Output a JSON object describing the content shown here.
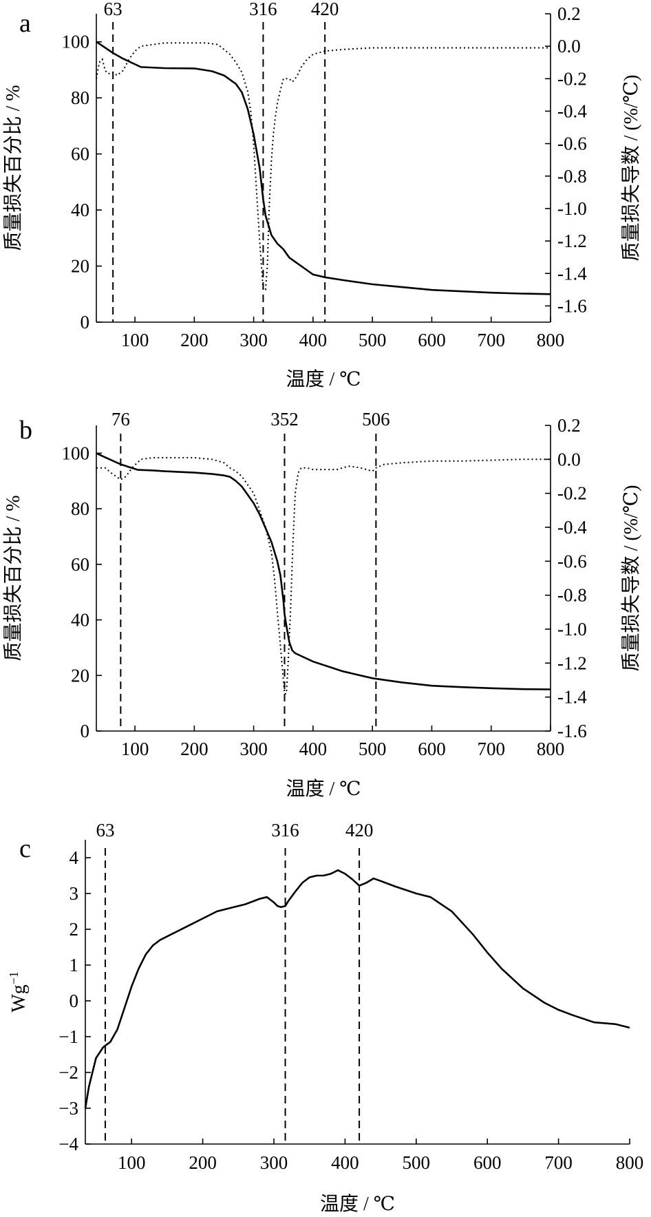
{
  "chart_data": [
    {
      "panel": "a",
      "type": "line",
      "xlabel": "温度 / ℃",
      "ylabel": "质量损失百分比 / %",
      "y2label": "质量损失导数 / (%/℃)",
      "xlim": [
        35,
        800
      ],
      "ylim": [
        0,
        110
      ],
      "y2lim": [
        -1.7,
        0.2
      ],
      "xticks": [
        "100",
        "200",
        "300",
        "400",
        "500",
        "600",
        "700",
        "800"
      ],
      "yticks": [
        "0",
        "20",
        "40",
        "60",
        "80",
        "100"
      ],
      "y2ticks": [
        "0.2",
        "0.0",
        "-0.2",
        "-0.4",
        "-0.6",
        "-0.8",
        "-1.0",
        "-1.2",
        "-1.4",
        "-1.6"
      ],
      "markers": [
        {
          "x": 63,
          "label": "63"
        },
        {
          "x": 316,
          "label": "316"
        },
        {
          "x": 420,
          "label": "420"
        }
      ],
      "series": [
        {
          "axis": "left",
          "style": "solid",
          "x": [
            35,
            63,
            80,
            110,
            150,
            200,
            230,
            250,
            270,
            280,
            290,
            300,
            310,
            316,
            320,
            330,
            340,
            350,
            360,
            380,
            400,
            420,
            450,
            500,
            550,
            600,
            650,
            700,
            750,
            800
          ],
          "y": [
            100,
            96,
            94,
            91,
            90.6,
            90.5,
            89.5,
            88,
            85,
            82,
            76,
            67,
            55,
            44,
            38,
            31,
            28,
            26,
            23,
            20,
            17,
            16,
            15,
            13.5,
            12.5,
            11.5,
            11,
            10.5,
            10.2,
            10
          ]
        },
        {
          "axis": "right",
          "style": "dotted",
          "x": [
            35,
            40,
            45,
            50,
            55,
            63,
            70,
            80,
            90,
            100,
            110,
            130,
            150,
            170,
            200,
            220,
            240,
            260,
            270,
            280,
            290,
            295,
            300,
            305,
            310,
            316,
            320,
            323,
            326,
            330,
            333,
            336,
            340,
            345,
            350,
            355,
            360,
            365,
            370,
            375,
            380,
            390,
            400,
            420,
            450,
            500,
            600,
            700,
            800
          ],
          "y": [
            -0.2,
            -0.1,
            -0.08,
            -0.15,
            -0.17,
            -0.16,
            -0.18,
            -0.15,
            -0.08,
            -0.03,
            0,
            0.01,
            0.02,
            0.02,
            0.02,
            0.02,
            0.01,
            -0.05,
            -0.1,
            -0.16,
            -0.28,
            -0.4,
            -0.6,
            -0.9,
            -1.2,
            -1.5,
            -1.5,
            -1.35,
            -1.0,
            -0.7,
            -0.55,
            -0.45,
            -0.35,
            -0.27,
            -0.2,
            -0.2,
            -0.2,
            -0.22,
            -0.2,
            -0.17,
            -0.13,
            -0.08,
            -0.05,
            -0.03,
            -0.02,
            -0.01,
            -0.01,
            -0.01,
            -0.01
          ]
        }
      ]
    },
    {
      "panel": "b",
      "type": "line",
      "xlabel": "温度 / ℃",
      "ylabel": "质量损失百分比 / %",
      "y2label": "质量损失导数 / (%/℃)",
      "xlim": [
        35,
        800
      ],
      "ylim": [
        0,
        110
      ],
      "y2lim": [
        -1.6,
        0.2
      ],
      "xticks": [
        "100",
        "200",
        "300",
        "400",
        "500",
        "600",
        "700",
        "800"
      ],
      "yticks": [
        "0",
        "20",
        "40",
        "60",
        "80",
        "100"
      ],
      "y2ticks": [
        "0.2",
        "0.0",
        "-0.2",
        "-0.4",
        "-0.6",
        "-0.8",
        "-1.0",
        "-1.2",
        "-1.4",
        "-1.6"
      ],
      "markers": [
        {
          "x": 76,
          "label": "76"
        },
        {
          "x": 352,
          "label": "352"
        },
        {
          "x": 506,
          "label": "506"
        }
      ],
      "series": [
        {
          "axis": "left",
          "style": "solid",
          "x": [
            35,
            50,
            76,
            90,
            105,
            130,
            150,
            200,
            230,
            250,
            260,
            270,
            280,
            290,
            300,
            310,
            320,
            330,
            340,
            345,
            350,
            352,
            355,
            360,
            365,
            370,
            380,
            400,
            450,
            500,
            550,
            600,
            650,
            700,
            750,
            800
          ],
          "y": [
            100,
            98.5,
            96,
            95,
            94,
            93.8,
            93.5,
            93,
            92.5,
            92,
            91.5,
            90,
            88,
            85,
            82,
            78,
            73,
            68,
            61,
            56,
            47,
            42,
            38,
            32,
            29,
            28,
            27,
            25,
            21.5,
            19,
            17.5,
            16.3,
            15.8,
            15.4,
            15.1,
            15
          ]
        },
        {
          "axis": "right",
          "style": "dotted",
          "x": [
            35,
            50,
            60,
            76,
            85,
            95,
            110,
            130,
            150,
            200,
            230,
            250,
            260,
            270,
            280,
            290,
            300,
            310,
            320,
            330,
            335,
            340,
            345,
            350,
            352,
            355,
            358,
            362,
            366,
            370,
            375,
            380,
            390,
            400,
            420,
            440,
            460,
            480,
            500,
            506,
            520,
            550,
            600,
            650,
            700,
            750,
            800
          ],
          "y": [
            -0.05,
            -0.05,
            -0.08,
            -0.12,
            -0.1,
            -0.05,
            0,
            0.01,
            0.01,
            0.01,
            0,
            -0.02,
            -0.05,
            -0.07,
            -0.1,
            -0.15,
            -0.2,
            -0.3,
            -0.4,
            -0.55,
            -0.7,
            -0.9,
            -1.1,
            -1.3,
            -1.38,
            -1.38,
            -1.2,
            -0.9,
            -0.5,
            -0.2,
            -0.08,
            -0.05,
            -0.05,
            -0.06,
            -0.06,
            -0.06,
            -0.04,
            -0.05,
            -0.07,
            -0.05,
            -0.03,
            -0.02,
            -0.01,
            -0.01,
            -0.005,
            0,
            0
          ]
        }
      ]
    },
    {
      "panel": "c",
      "type": "line",
      "xlabel": "温度 / ℃",
      "ylabel": "Wg",
      "ylabel_sup": "−1",
      "xlim": [
        35,
        800
      ],
      "ylim": [
        -4,
        4.5
      ],
      "xticks": [
        "100",
        "200",
        "300",
        "400",
        "500",
        "600",
        "700",
        "800"
      ],
      "yticks": [
        "−4",
        "−3",
        "−2",
        "−1",
        "0",
        "1",
        "2",
        "3",
        "4"
      ],
      "markers": [
        {
          "x": 63,
          "label": "63"
        },
        {
          "x": 316,
          "label": "316"
        },
        {
          "x": 420,
          "label": "420"
        }
      ],
      "series": [
        {
          "axis": "left",
          "style": "solid",
          "x": [
            35,
            40,
            50,
            60,
            63,
            70,
            80,
            90,
            100,
            110,
            120,
            130,
            140,
            160,
            180,
            200,
            220,
            240,
            260,
            280,
            290,
            300,
            305,
            310,
            316,
            320,
            330,
            340,
            350,
            360,
            370,
            380,
            390,
            400,
            410,
            420,
            430,
            440,
            450,
            470,
            500,
            520,
            550,
            580,
            600,
            620,
            650,
            680,
            700,
            720,
            750,
            780,
            800
          ],
          "y": [
            -3,
            -2.4,
            -1.6,
            -1.3,
            -1.25,
            -1.15,
            -0.8,
            -0.2,
            0.4,
            0.9,
            1.3,
            1.55,
            1.7,
            1.9,
            2.1,
            2.3,
            2.5,
            2.6,
            2.7,
            2.85,
            2.9,
            2.75,
            2.65,
            2.62,
            2.65,
            2.78,
            3.05,
            3.3,
            3.45,
            3.5,
            3.5,
            3.55,
            3.65,
            3.55,
            3.4,
            3.22,
            3.3,
            3.42,
            3.35,
            3.2,
            3.0,
            2.9,
            2.5,
            1.85,
            1.35,
            0.9,
            0.35,
            -0.05,
            -0.25,
            -0.4,
            -0.6,
            -0.65,
            -0.75
          ]
        }
      ]
    }
  ],
  "panel_labels": [
    "a",
    "b",
    "c"
  ]
}
